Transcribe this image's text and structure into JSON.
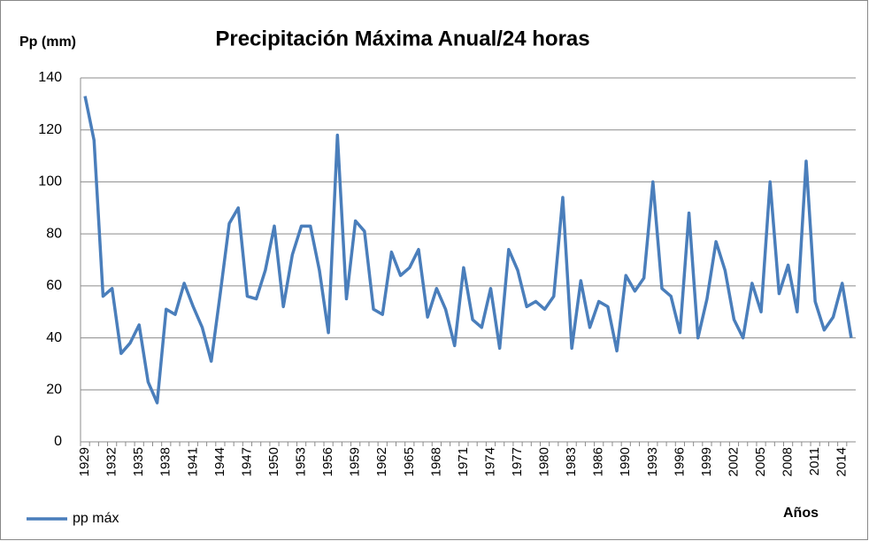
{
  "chart_data": {
    "type": "line",
    "title": "Precipitación Máxima Anual/24 horas",
    "y_label": "Pp (mm)",
    "x_label": "Años",
    "categories": [
      "1929",
      null,
      null,
      "1932",
      null,
      null,
      "1935",
      null,
      null,
      "1938",
      null,
      null,
      "1941",
      null,
      null,
      "1944",
      null,
      null,
      "1947",
      null,
      null,
      "1950",
      null,
      null,
      "1953",
      null,
      null,
      "1956",
      null,
      null,
      "1959",
      null,
      null,
      "1962",
      null,
      null,
      "1965",
      null,
      null,
      "1968",
      null,
      null,
      "1971",
      null,
      null,
      "1974",
      null,
      null,
      "1977",
      null,
      null,
      "1980",
      null,
      null,
      "1983",
      null,
      null,
      "1986",
      null,
      null,
      "1990",
      null,
      null,
      "1993",
      null,
      null,
      "1996",
      null,
      null,
      "1999",
      null,
      null,
      "2002",
      null,
      null,
      "2005",
      null,
      null,
      "2008",
      null,
      null,
      "2011",
      null,
      null,
      "2014",
      null
    ],
    "series": [
      {
        "name": "pp máx",
        "color": "#4a7ebb",
        "values": [
          133,
          116,
          56,
          59,
          34,
          38,
          45,
          23,
          15,
          51,
          49,
          61,
          52,
          44,
          31,
          57,
          84,
          90,
          56,
          55,
          66,
          83,
          52,
          72,
          83,
          83,
          66,
          42,
          118,
          55,
          85,
          81,
          51,
          49,
          73,
          64,
          67,
          74,
          48,
          59,
          51,
          37,
          67,
          47,
          44,
          59,
          36,
          74,
          66,
          52,
          54,
          51,
          56,
          94,
          36,
          62,
          44,
          54,
          52,
          35,
          64,
          58,
          63,
          100,
          59,
          56,
          42,
          88,
          40,
          55,
          77,
          66,
          47,
          40,
          61,
          50,
          100,
          57,
          68,
          50,
          108,
          54,
          43,
          48,
          61,
          40
        ]
      }
    ],
    "ylim": [
      0,
      140
    ],
    "yticks": [
      0,
      20,
      40,
      60,
      80,
      100,
      120,
      140
    ],
    "grid": true,
    "legend": "bottom-left"
  }
}
